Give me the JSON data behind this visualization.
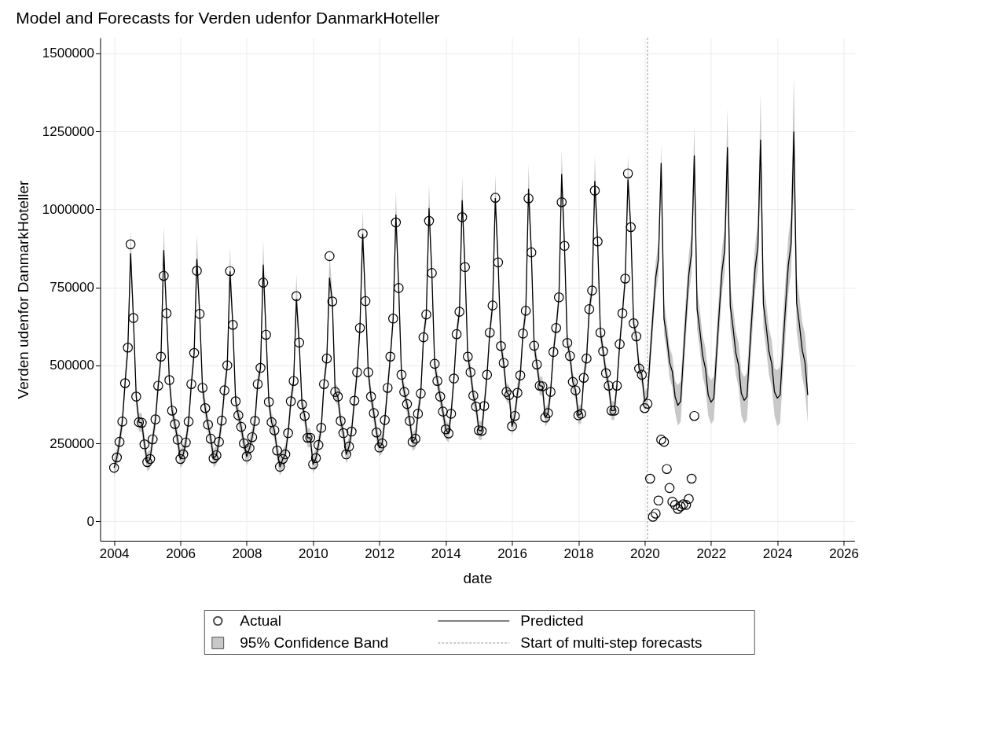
{
  "chart_data": {
    "type": "line",
    "title": "Model and Forecasts for Verden udenfor DanmarkHoteller",
    "xlabel": "date",
    "ylabel": "Verden udenfor DanmarkHoteller",
    "x": [
      "2004-01",
      "2004-02",
      "2004-03",
      "2004-04",
      "2004-05",
      "2004-06",
      "2004-07",
      "2004-08",
      "2004-09",
      "2004-10",
      "2004-11",
      "2004-12",
      "2005-01",
      "2005-02",
      "2005-03",
      "2005-04",
      "2005-05",
      "2005-06",
      "2005-07",
      "2005-08",
      "2005-09",
      "2005-10",
      "2005-11",
      "2005-12",
      "2006-01",
      "2006-02",
      "2006-03",
      "2006-04",
      "2006-05",
      "2006-06",
      "2006-07",
      "2006-08",
      "2006-09",
      "2006-10",
      "2006-11",
      "2006-12",
      "2007-01",
      "2007-02",
      "2007-03",
      "2007-04",
      "2007-05",
      "2007-06",
      "2007-07",
      "2007-08",
      "2007-09",
      "2007-10",
      "2007-11",
      "2007-12",
      "2008-01",
      "2008-02",
      "2008-03",
      "2008-04",
      "2008-05",
      "2008-06",
      "2008-07",
      "2008-08",
      "2008-09",
      "2008-10",
      "2008-11",
      "2008-12",
      "2009-01",
      "2009-02",
      "2009-03",
      "2009-04",
      "2009-05",
      "2009-06",
      "2009-07",
      "2009-08",
      "2009-09",
      "2009-10",
      "2009-11",
      "2009-12",
      "2010-01",
      "2010-02",
      "2010-03",
      "2010-04",
      "2010-05",
      "2010-06",
      "2010-07",
      "2010-08",
      "2010-09",
      "2010-10",
      "2010-11",
      "2010-12",
      "2011-01",
      "2011-02",
      "2011-03",
      "2011-04",
      "2011-05",
      "2011-06",
      "2011-07",
      "2011-08",
      "2011-09",
      "2011-10",
      "2011-11",
      "2011-12",
      "2012-01",
      "2012-02",
      "2012-03",
      "2012-04",
      "2012-05",
      "2012-06",
      "2012-07",
      "2012-08",
      "2012-09",
      "2012-10",
      "2012-11",
      "2012-12",
      "2013-01",
      "2013-02",
      "2013-03",
      "2013-04",
      "2013-05",
      "2013-06",
      "2013-07",
      "2013-08",
      "2013-09",
      "2013-10",
      "2013-11",
      "2013-12",
      "2014-01",
      "2014-02",
      "2014-03",
      "2014-04",
      "2014-05",
      "2014-06",
      "2014-07",
      "2014-08",
      "2014-09",
      "2014-10",
      "2014-11",
      "2014-12",
      "2015-01",
      "2015-02",
      "2015-03",
      "2015-04",
      "2015-05",
      "2015-06",
      "2015-07",
      "2015-08",
      "2015-09",
      "2015-10",
      "2015-11",
      "2015-12",
      "2016-01",
      "2016-02",
      "2016-03",
      "2016-04",
      "2016-05",
      "2016-06",
      "2016-07",
      "2016-08",
      "2016-09",
      "2016-10",
      "2016-11",
      "2016-12",
      "2017-01",
      "2017-02",
      "2017-03",
      "2017-04",
      "2017-05",
      "2017-06",
      "2017-07",
      "2017-08",
      "2017-09",
      "2017-10",
      "2017-11",
      "2017-12",
      "2018-01",
      "2018-02",
      "2018-03",
      "2018-04",
      "2018-05",
      "2018-06",
      "2018-07",
      "2018-08",
      "2018-09",
      "2018-10",
      "2018-11",
      "2018-12",
      "2019-01",
      "2019-02",
      "2019-03",
      "2019-04",
      "2019-05",
      "2019-06",
      "2019-07",
      "2019-08",
      "2019-09",
      "2019-10",
      "2019-11",
      "2019-12",
      "2020-01",
      "2020-02",
      "2020-03",
      "2020-04",
      "2020-05",
      "2020-06",
      "2020-07",
      "2020-08",
      "2020-09",
      "2020-10",
      "2020-11",
      "2020-12",
      "2021-01",
      "2021-02",
      "2021-03",
      "2021-04",
      "2021-05",
      "2021-06",
      "2021-07",
      "2021-08",
      "2021-09",
      "2021-10",
      "2021-11",
      "2021-12",
      "2022-01",
      "2022-02",
      "2022-03",
      "2022-04",
      "2022-05",
      "2022-06",
      "2022-07",
      "2022-08",
      "2022-09",
      "2022-10",
      "2022-11",
      "2022-12",
      "2023-01",
      "2023-02",
      "2023-03",
      "2023-04",
      "2023-05",
      "2023-06",
      "2023-07",
      "2023-08",
      "2023-09",
      "2023-10",
      "2023-11",
      "2023-12",
      "2024-01",
      "2024-02",
      "2024-03",
      "2024-04",
      "2024-05",
      "2024-06",
      "2024-07",
      "2024-08",
      "2024-09",
      "2024-10",
      "2024-11",
      "2024-12"
    ],
    "series": [
      {
        "name": "Actual",
        "type": "scatter",
        "marker": "circle",
        "color": "#000000",
        "values": [
          172000,
          205000,
          255000,
          320000,
          443000,
          557000,
          888000,
          652000,
          400000,
          318000,
          316000,
          247000,
          190000,
          200000,
          263000,
          327000,
          435000,
          528000,
          787000,
          667000,
          453000,
          355000,
          312000,
          262000,
          200000,
          215000,
          253000,
          320000,
          440000,
          540000,
          803000,
          665000,
          428000,
          363000,
          310000,
          265000,
          202000,
          212000,
          255000,
          323000,
          420000,
          500000,
          802000,
          630000,
          385000,
          340000,
          303000,
          250000,
          208000,
          235000,
          270000,
          322000,
          440000,
          492000,
          765000,
          598000,
          383000,
          318000,
          292000,
          227000,
          175000,
          200000,
          215000,
          283000,
          385000,
          450000,
          722000,
          573000,
          375000,
          338000,
          268000,
          268000,
          183000,
          203000,
          245000,
          300000,
          440000,
          522000,
          850000,
          705000,
          415000,
          400000,
          322000,
          283000,
          215000,
          240000,
          288000,
          387000,
          478000,
          620000,
          922000,
          706000,
          478000,
          400000,
          347000,
          285000,
          237000,
          250000,
          325000,
          428000,
          528000,
          650000,
          958000,
          748000,
          470000,
          415000,
          376000,
          322000,
          255000,
          265000,
          345000,
          410000,
          590000,
          663000,
          963000,
          796000,
          505000,
          450000,
          400000,
          352000,
          295000,
          282000,
          345000,
          458000,
          600000,
          672000,
          975000,
          815000,
          528000,
          478000,
          403000,
          368000,
          292000,
          290000,
          370000,
          470000,
          605000,
          692000,
          1037000,
          830000,
          562000,
          508000,
          415000,
          405000,
          305000,
          338000,
          412000,
          468000,
          602000,
          675000,
          1035000,
          862000,
          563000,
          503000,
          435000,
          433000,
          333000,
          347000,
          415000,
          543000,
          620000,
          718000,
          1023000,
          883000,
          572000,
          530000,
          447000,
          420000,
          340000,
          345000,
          460000,
          522000,
          680000,
          740000,
          1060000,
          897000,
          605000,
          545000,
          475000,
          435000,
          355000,
          355000,
          435000,
          568000,
          667000,
          778000,
          1115000,
          943000,
          635000,
          593000,
          490000,
          470000,
          363000,
          377000,
          137000,
          15000,
          25000,
          67000,
          262000,
          255000,
          168000,
          107000,
          63000,
          53000,
          40000,
          48000,
          55000,
          53000,
          72000,
          137000,
          338000,
          null,
          null,
          null,
          null,
          null,
          null,
          null,
          null,
          null,
          null,
          null,
          null,
          null,
          null,
          null,
          null,
          null,
          null,
          null,
          null,
          null,
          null,
          null,
          null,
          null,
          null,
          null,
          null,
          null,
          null,
          null,
          null,
          null,
          null,
          null,
          null,
          null,
          null,
          null,
          null,
          null
        ]
      },
      {
        "name": "Predicted",
        "line_style": "solid",
        "color": "#000000",
        "values": [
          172000,
          205000,
          255000,
          320000,
          443000,
          557000,
          858000,
          652000,
          400000,
          318000,
          316000,
          247000,
          190000,
          200000,
          263000,
          327000,
          435000,
          528000,
          868000,
          667000,
          453000,
          355000,
          312000,
          262000,
          200000,
          215000,
          253000,
          320000,
          440000,
          540000,
          840000,
          665000,
          428000,
          363000,
          310000,
          265000,
          202000,
          212000,
          255000,
          323000,
          420000,
          500000,
          800000,
          630000,
          385000,
          340000,
          303000,
          250000,
          208000,
          235000,
          270000,
          322000,
          440000,
          492000,
          822000,
          598000,
          383000,
          318000,
          292000,
          227000,
          175000,
          200000,
          215000,
          283000,
          385000,
          450000,
          712000,
          573000,
          375000,
          338000,
          268000,
          268000,
          183000,
          203000,
          245000,
          300000,
          440000,
          522000,
          780000,
          705000,
          415000,
          400000,
          322000,
          283000,
          215000,
          240000,
          288000,
          387000,
          478000,
          620000,
          920000,
          706000,
          478000,
          400000,
          347000,
          285000,
          237000,
          250000,
          325000,
          428000,
          528000,
          650000,
          982000,
          748000,
          470000,
          415000,
          376000,
          322000,
          255000,
          265000,
          345000,
          410000,
          590000,
          663000,
          1003000,
          796000,
          505000,
          450000,
          400000,
          352000,
          295000,
          282000,
          345000,
          458000,
          600000,
          672000,
          1028000,
          815000,
          528000,
          478000,
          403000,
          368000,
          292000,
          290000,
          370000,
          470000,
          605000,
          692000,
          1035000,
          830000,
          562000,
          508000,
          415000,
          405000,
          305000,
          338000,
          412000,
          468000,
          602000,
          675000,
          1065000,
          862000,
          563000,
          503000,
          435000,
          433000,
          333000,
          347000,
          415000,
          543000,
          620000,
          718000,
          1112000,
          883000,
          572000,
          530000,
          447000,
          420000,
          340000,
          345000,
          460000,
          522000,
          680000,
          740000,
          1090000,
          897000,
          605000,
          545000,
          475000,
          435000,
          355000,
          355000,
          435000,
          568000,
          667000,
          778000,
          1095000,
          943000,
          635000,
          593000,
          490000,
          470000,
          385000,
          400000,
          530000,
          660000,
          780000,
          840000,
          1148000,
          650000,
          590000,
          510000,
          480000,
          400000,
          372000,
          385000,
          520000,
          660000,
          790000,
          860000,
          1172000,
          680000,
          610000,
          530000,
          490000,
          405000,
          382000,
          395000,
          530000,
          670000,
          800000,
          870000,
          1198000,
          690000,
          620000,
          540000,
          500000,
          410000,
          388000,
          400000,
          540000,
          680000,
          810000,
          880000,
          1222000,
          695000,
          625000,
          545000,
          505000,
          415000,
          395000,
          405000,
          550000,
          690000,
          820000,
          890000,
          1248000,
          700000,
          630000,
          550000,
          510000,
          405000
        ],
        "lower": [
          142000,
          175000,
          225000,
          290000,
          413000,
          527000,
          818000,
          622000,
          370000,
          288000,
          286000,
          217000,
          160000,
          170000,
          233000,
          297000,
          405000,
          498000,
          828000,
          637000,
          423000,
          325000,
          282000,
          232000,
          170000,
          185000,
          223000,
          290000,
          410000,
          510000,
          800000,
          635000,
          398000,
          333000,
          280000,
          235000,
          172000,
          182000,
          225000,
          293000,
          390000,
          470000,
          760000,
          600000,
          355000,
          310000,
          273000,
          220000,
          178000,
          205000,
          240000,
          292000,
          410000,
          462000,
          782000,
          568000,
          353000,
          288000,
          262000,
          197000,
          145000,
          170000,
          185000,
          253000,
          355000,
          420000,
          672000,
          543000,
          345000,
          308000,
          238000,
          238000,
          153000,
          173000,
          215000,
          270000,
          410000,
          492000,
          740000,
          675000,
          385000,
          370000,
          292000,
          253000,
          185000,
          210000,
          258000,
          357000,
          448000,
          590000,
          880000,
          676000,
          448000,
          370000,
          317000,
          255000,
          207000,
          220000,
          295000,
          398000,
          498000,
          620000,
          942000,
          718000,
          440000,
          385000,
          346000,
          292000,
          225000,
          235000,
          315000,
          380000,
          560000,
          633000,
          963000,
          766000,
          475000,
          420000,
          370000,
          322000,
          265000,
          252000,
          315000,
          428000,
          570000,
          642000,
          988000,
          785000,
          498000,
          448000,
          373000,
          338000,
          262000,
          260000,
          340000,
          440000,
          575000,
          662000,
          995000,
          800000,
          532000,
          478000,
          385000,
          375000,
          275000,
          308000,
          382000,
          438000,
          572000,
          645000,
          1025000,
          832000,
          533000,
          473000,
          405000,
          403000,
          303000,
          317000,
          385000,
          513000,
          590000,
          688000,
          1072000,
          853000,
          542000,
          500000,
          417000,
          390000,
          310000,
          315000,
          430000,
          492000,
          650000,
          710000,
          1050000,
          867000,
          575000,
          515000,
          445000,
          405000,
          325000,
          325000,
          405000,
          538000,
          637000,
          748000,
          1055000,
          913000,
          605000,
          563000,
          460000,
          440000,
          355000,
          370000,
          480000,
          610000,
          730000,
          790000,
          1088000,
          600000,
          540000,
          460000,
          430000,
          350000,
          307000,
          320000,
          455000,
          595000,
          725000,
          795000,
          1072000,
          615000,
          545000,
          465000,
          425000,
          340000,
          312000,
          325000,
          460000,
          600000,
          730000,
          800000,
          1073000,
          620000,
          550000,
          470000,
          430000,
          340000,
          313000,
          325000,
          465000,
          605000,
          735000,
          805000,
          1072000,
          620000,
          550000,
          470000,
          430000,
          340000,
          305000,
          315000,
          460000,
          600000,
          730000,
          800000,
          1068000,
          610000,
          540000,
          460000,
          420000,
          315000
        ],
        "upper": [
          202000,
          235000,
          285000,
          350000,
          473000,
          587000,
          938000,
          682000,
          430000,
          348000,
          346000,
          277000,
          220000,
          230000,
          293000,
          357000,
          465000,
          558000,
          948000,
          697000,
          483000,
          385000,
          342000,
          292000,
          230000,
          245000,
          283000,
          350000,
          470000,
          570000,
          920000,
          695000,
          458000,
          393000,
          340000,
          295000,
          232000,
          242000,
          285000,
          353000,
          450000,
          530000,
          880000,
          660000,
          415000,
          370000,
          333000,
          280000,
          238000,
          265000,
          300000,
          352000,
          470000,
          522000,
          902000,
          628000,
          413000,
          348000,
          322000,
          257000,
          205000,
          230000,
          245000,
          313000,
          415000,
          480000,
          792000,
          603000,
          405000,
          368000,
          298000,
          298000,
          213000,
          233000,
          275000,
          330000,
          470000,
          552000,
          860000,
          735000,
          445000,
          430000,
          352000,
          313000,
          245000,
          270000,
          318000,
          417000,
          508000,
          650000,
          1000000,
          736000,
          508000,
          430000,
          377000,
          315000,
          267000,
          280000,
          355000,
          458000,
          558000,
          680000,
          1062000,
          778000,
          500000,
          445000,
          406000,
          352000,
          285000,
          295000,
          375000,
          440000,
          620000,
          693000,
          1083000,
          826000,
          535000,
          480000,
          430000,
          382000,
          325000,
          312000,
          375000,
          488000,
          630000,
          702000,
          1108000,
          845000,
          558000,
          508000,
          433000,
          398000,
          322000,
          320000,
          400000,
          500000,
          635000,
          722000,
          1115000,
          860000,
          592000,
          538000,
          445000,
          435000,
          335000,
          368000,
          442000,
          498000,
          632000,
          705000,
          1145000,
          892000,
          593000,
          533000,
          465000,
          463000,
          363000,
          377000,
          445000,
          573000,
          650000,
          748000,
          1192000,
          913000,
          602000,
          560000,
          477000,
          450000,
          370000,
          375000,
          490000,
          552000,
          710000,
          770000,
          1170000,
          927000,
          635000,
          575000,
          505000,
          465000,
          385000,
          385000,
          465000,
          598000,
          697000,
          808000,
          1175000,
          973000,
          665000,
          623000,
          520000,
          500000,
          415000,
          430000,
          580000,
          710000,
          830000,
          890000,
          1208000,
          700000,
          640000,
          560000,
          530000,
          450000,
          437000,
          450000,
          585000,
          725000,
          855000,
          925000,
          1272000,
          745000,
          675000,
          595000,
          555000,
          470000,
          452000,
          465000,
          600000,
          740000,
          870000,
          940000,
          1323000,
          760000,
          690000,
          610000,
          570000,
          480000,
          463000,
          475000,
          615000,
          755000,
          885000,
          955000,
          1372000,
          770000,
          700000,
          620000,
          580000,
          490000,
          485000,
          495000,
          640000,
          780000,
          910000,
          980000,
          1428000,
          790000,
          720000,
          640000,
          600000,
          495000
        ]
      }
    ],
    "annotations": [
      "95% Confidence Band"
    ],
    "ref_lines": [
      {
        "axis": "x",
        "value": "2020-02",
        "label": "Start of multi-step forecasts",
        "color": "#999999",
        "line_style": "dashed"
      }
    ],
    "xlim": [
      "2003-08",
      "2026-05"
    ],
    "xticks": [
      "2004",
      "2006",
      "2008",
      "2010",
      "2012",
      "2014",
      "2016",
      "2018",
      "2020",
      "2022",
      "2024",
      "2026"
    ],
    "ylim": [
      -62000,
      1550000
    ],
    "yticks": [
      0,
      250000,
      500000,
      750000,
      1000000,
      1250000,
      1500000
    ],
    "grid": true,
    "legend": "bottom"
  }
}
